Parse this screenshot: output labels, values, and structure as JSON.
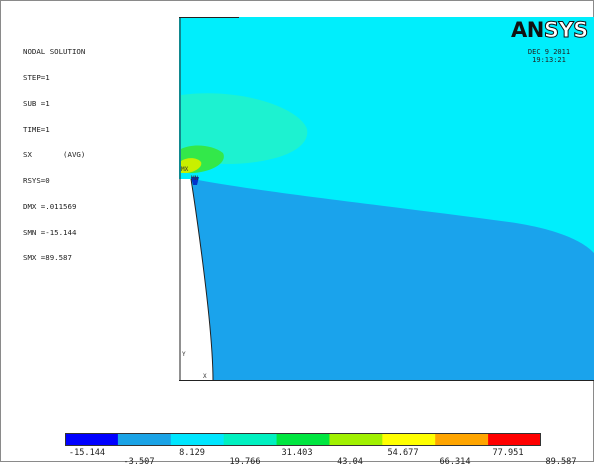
{
  "solution_info": {
    "lines": [
      "NODAL SOLUTION",
      "STEP=1",
      "SUB =1",
      "TIME=1",
      "SX       (AVG)",
      "RSYS=0",
      "DMX =.011569",
      "SMN =-15.144",
      "SMX =89.587"
    ]
  },
  "logo": {
    "part1": "AN",
    "part2": "SYS"
  },
  "timestamp": {
    "date": "DEC  9 2011",
    "time": "19:13:21"
  },
  "markers": {
    "mx": "MX",
    "mn": "MN",
    "x": "X",
    "y": "Y"
  },
  "legend": {
    "colors": [
      "#0000ff",
      "#1aa3e6",
      "#00e6ff",
      "#00f0c0",
      "#00e640",
      "#a0f000",
      "#ffff00",
      "#ffa500",
      "#ff0000"
    ],
    "labels_top": [
      "-15.144",
      "8.129",
      "31.403",
      "54.677",
      "77.951"
    ],
    "labels_bottom": [
      "-3.507",
      "19.766",
      "43.04",
      "66.314",
      "89.587"
    ]
  },
  "contour_colors": {
    "upper": "#00eefc",
    "lower": "#1aa3ec",
    "ellipse": "#1df2d0",
    "green": "#33e84a",
    "yellow": "#c8f000",
    "min_blue": "#0033cc",
    "hole": "#ffffff"
  }
}
